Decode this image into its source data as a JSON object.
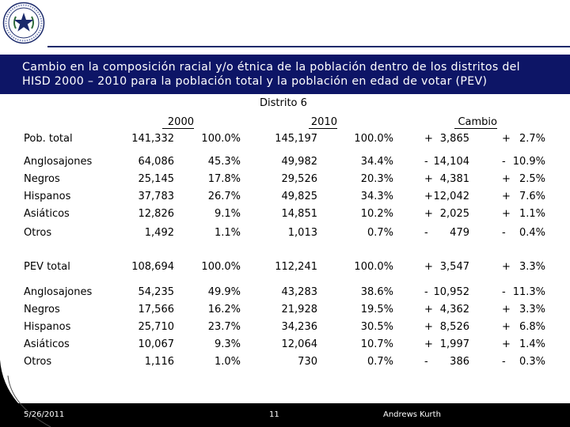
{
  "title": {
    "line1": "Cambio en la composición racial y/o étnica de la población dentro de los distritos del",
    "line2": "HISD 2000 – 2010 para la población total y la población en edad de votar (PEV)"
  },
  "district_label": "Distrito 6",
  "column_headers": {
    "y2000": "2000",
    "y2010": "2010",
    "change": "Cambio"
  },
  "sections": [
    {
      "rows": [
        {
          "label": "Pob. total",
          "v2000": "141,332",
          "p2000": "100.0%",
          "v2010": "145,197",
          "p2010": "100.0%",
          "c_sign": "+",
          "c_num": "3,865",
          "cp_sign": "+",
          "cp_num": "2.7%"
        },
        {
          "label": "Anglosajones",
          "v2000": "64,086",
          "p2000": "45.3%",
          "v2010": "49,982",
          "p2010": "34.4%",
          "c_sign": "-",
          "c_num": "14,104",
          "cp_sign": "-",
          "cp_num": "10.9%"
        },
        {
          "label": "Negros",
          "v2000": "25,145",
          "p2000": "17.8%",
          "v2010": "29,526",
          "p2010": "20.3%",
          "c_sign": "+",
          "c_num": "4,381",
          "cp_sign": "+",
          "cp_num": "2.5%"
        },
        {
          "label": "Hispanos",
          "v2000": "37,783",
          "p2000": "26.7%",
          "v2010": "49,825",
          "p2010": "34.3%",
          "c_sign": "+",
          "c_num": "12,042",
          "cp_sign": "+",
          "cp_num": "7.6%"
        },
        {
          "label": "Asiáticos",
          "v2000": "12,826",
          "p2000": "9.1%",
          "v2010": "14,851",
          "p2010": "10.2%",
          "c_sign": "+",
          "c_num": "2,025",
          "cp_sign": "+",
          "cp_num": "1.1%"
        },
        {
          "label": "Otros",
          "v2000": "1,492",
          "p2000": "1.1%",
          "v2010": "1,013",
          "p2010": "0.7%",
          "c_sign": "-",
          "c_num": "479",
          "cp_sign": "-",
          "cp_num": "0.4%"
        }
      ]
    },
    {
      "rows": [
        {
          "label": "PEV total",
          "v2000": "108,694",
          "p2000": "100.0%",
          "v2010": "112,241",
          "p2010": "100.0%",
          "c_sign": "+",
          "c_num": "3,547",
          "cp_sign": "+",
          "cp_num": "3.3%"
        },
        {
          "label": "Anglosajones",
          "v2000": "54,235",
          "p2000": "49.9%",
          "v2010": "43,283",
          "p2010": "38.6%",
          "c_sign": "-",
          "c_num": "10,952",
          "cp_sign": "-",
          "cp_num": "11.3%"
        },
        {
          "label": "Negros",
          "v2000": "17,566",
          "p2000": "16.2%",
          "v2010": "21,928",
          "p2010": "19.5%",
          "c_sign": "+",
          "c_num": "4,362",
          "cp_sign": "+",
          "cp_num": "3.3%"
        },
        {
          "label": "Hispanos",
          "v2000": "25,710",
          "p2000": "23.7%",
          "v2010": "34,236",
          "p2010": "30.5%",
          "c_sign": "+",
          "c_num": "8,526",
          "cp_sign": "+",
          "cp_num": "6.8%"
        },
        {
          "label": "Asiáticos",
          "v2000": "10,067",
          "p2000": "9.3%",
          "v2010": "12,064",
          "p2010": "10.7%",
          "c_sign": "+",
          "c_num": "1,997",
          "cp_sign": "+",
          "cp_num": "1.4%"
        },
        {
          "label": "Otros",
          "v2000": "1,116",
          "p2000": "1.0%",
          "v2010": "730",
          "p2010": "0.7%",
          "c_sign": "-",
          "c_num": "386",
          "cp_sign": "-",
          "cp_num": "0.3%"
        }
      ]
    }
  ],
  "footer": {
    "date": "5/26/2011",
    "page": "11",
    "firm": "Andrews Kurth"
  },
  "colors": {
    "banner": "#0d1566",
    "footer": "#000000",
    "text": "#000000"
  },
  "logo_icon": "texas-star-seal-icon"
}
